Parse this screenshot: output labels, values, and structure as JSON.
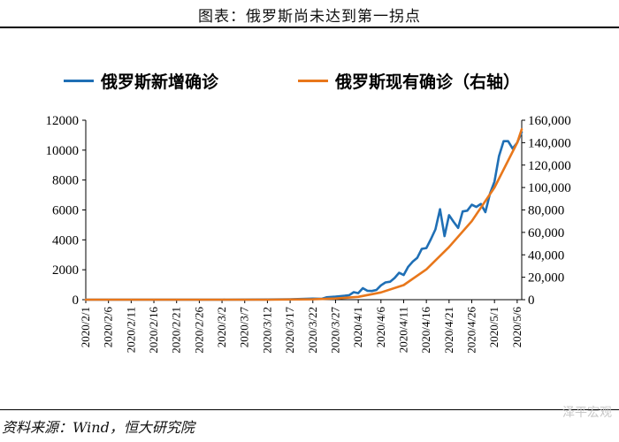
{
  "page": {
    "title": "图表：俄罗斯尚未达到第一拐点",
    "source": "资料来源：Wind，恒大研究院",
    "watermark": "泽平宏观"
  },
  "chart_data": {
    "type": "line",
    "legend_position": "top",
    "grid": false,
    "x_categories": [
      "2020/2/1",
      "2020/2/6",
      "2020/2/11",
      "2020/2/16",
      "2020/2/21",
      "2020/2/26",
      "2020/3/2",
      "2020/3/7",
      "2020/3/12",
      "2020/3/17",
      "2020/3/22",
      "2020/3/27",
      "2020/4/1",
      "2020/4/6",
      "2020/4/11",
      "2020/4/16",
      "2020/4/21",
      "2020/4/26",
      "2020/5/1",
      "2020/5/6"
    ],
    "y_left": {
      "min": 0,
      "max": 12000,
      "ticks": [
        "0",
        "2000",
        "4000",
        "6000",
        "8000",
        "10000",
        "12000"
      ]
    },
    "y_right": {
      "min": 0,
      "max": 160000,
      "ticks": [
        "0",
        "20,000",
        "40,000",
        "60,000",
        "80,000",
        "100,000",
        "120,000",
        "140,000",
        "160,000"
      ]
    },
    "series": [
      {
        "name": "俄罗斯新增确诊",
        "axis": "left",
        "color": "#1f6fb5",
        "points": [
          [
            "2020/2/1",
            0
          ],
          [
            "2020/3/2",
            0
          ],
          [
            "2020/3/12",
            10
          ],
          [
            "2020/3/17",
            30
          ],
          [
            "2020/3/22",
            70
          ],
          [
            "2020/3/24",
            60
          ],
          [
            "2020/3/25",
            160
          ],
          [
            "2020/3/27",
            200
          ],
          [
            "2020/3/29",
            260
          ],
          [
            "2020/3/30",
            300
          ],
          [
            "2020/3/31",
            500
          ],
          [
            "2020/4/1",
            440
          ],
          [
            "2020/4/2",
            770
          ],
          [
            "2020/4/3",
            600
          ],
          [
            "2020/4/4",
            580
          ],
          [
            "2020/4/5",
            650
          ],
          [
            "2020/4/6",
            960
          ],
          [
            "2020/4/7",
            1150
          ],
          [
            "2020/4/8",
            1200
          ],
          [
            "2020/4/9",
            1450
          ],
          [
            "2020/4/10",
            1800
          ],
          [
            "2020/4/11",
            1650
          ],
          [
            "2020/4/12",
            2200
          ],
          [
            "2020/4/13",
            2550
          ],
          [
            "2020/4/14",
            2800
          ],
          [
            "2020/4/15",
            3400
          ],
          [
            "2020/4/16",
            3450
          ],
          [
            "2020/4/17",
            4050
          ],
          [
            "2020/4/18",
            4700
          ],
          [
            "2020/4/19",
            6050
          ],
          [
            "2020/4/20",
            4250
          ],
          [
            "2020/4/21",
            5650
          ],
          [
            "2020/4/22",
            5200
          ],
          [
            "2020/4/23",
            4800
          ],
          [
            "2020/4/24",
            5900
          ],
          [
            "2020/4/25",
            5950
          ],
          [
            "2020/4/26",
            6350
          ],
          [
            "2020/4/27",
            6200
          ],
          [
            "2020/4/28",
            6400
          ],
          [
            "2020/4/29",
            5850
          ],
          [
            "2020/4/30",
            7100
          ],
          [
            "2020/5/1",
            7900
          ],
          [
            "2020/5/2",
            9600
          ],
          [
            "2020/5/3",
            10600
          ],
          [
            "2020/5/4",
            10600
          ],
          [
            "2020/5/5",
            10100
          ],
          [
            "2020/5/6",
            10500
          ],
          [
            "2020/5/7",
            11200
          ]
        ]
      },
      {
        "name": "俄罗斯现有确诊（右轴）",
        "axis": "right",
        "color": "#e8771b",
        "points": [
          [
            "2020/2/1",
            0
          ],
          [
            "2020/3/12",
            30
          ],
          [
            "2020/3/22",
            300
          ],
          [
            "2020/3/27",
            1000
          ],
          [
            "2020/4/1",
            2500
          ],
          [
            "2020/4/6",
            6500
          ],
          [
            "2020/4/11",
            13000
          ],
          [
            "2020/4/16",
            27000
          ],
          [
            "2020/4/21",
            47000
          ],
          [
            "2020/4/26",
            70000
          ],
          [
            "2020/5/1",
            100000
          ],
          [
            "2020/5/6",
            140000
          ],
          [
            "2020/5/7",
            152000
          ]
        ]
      }
    ]
  }
}
